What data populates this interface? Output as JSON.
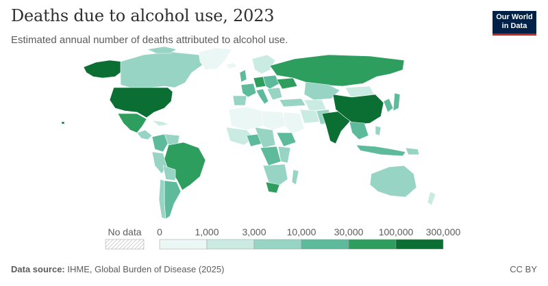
{
  "header": {
    "title": "Deaths due to alcohol use, 2023",
    "subtitle": "Estimated annual number of deaths attributed to alcohol use."
  },
  "logo": {
    "line1": "Our World",
    "line2": "in Data"
  },
  "legend": {
    "no_data_label": "No data",
    "ticks": [
      "0",
      "1,000",
      "3,000",
      "10,000",
      "30,000",
      "100,000",
      "300,000"
    ],
    "bins": [
      {
        "from": 0,
        "to": 1000,
        "color": "#eaf7f5"
      },
      {
        "from": 1000,
        "to": 3000,
        "color": "#c9ebe2"
      },
      {
        "from": 3000,
        "to": 10000,
        "color": "#98d4c3"
      },
      {
        "from": 10000,
        "to": 30000,
        "color": "#5dbb9b"
      },
      {
        "from": 30000,
        "to": 100000,
        "color": "#2d9e5e"
      },
      {
        "from": 100000,
        "to": 300000,
        "color": "#0b6e32"
      }
    ]
  },
  "footer": {
    "source_label": "Data source:",
    "source_text": "IHME, Global Burden of Disease (2025)",
    "license": "CC BY"
  }
}
